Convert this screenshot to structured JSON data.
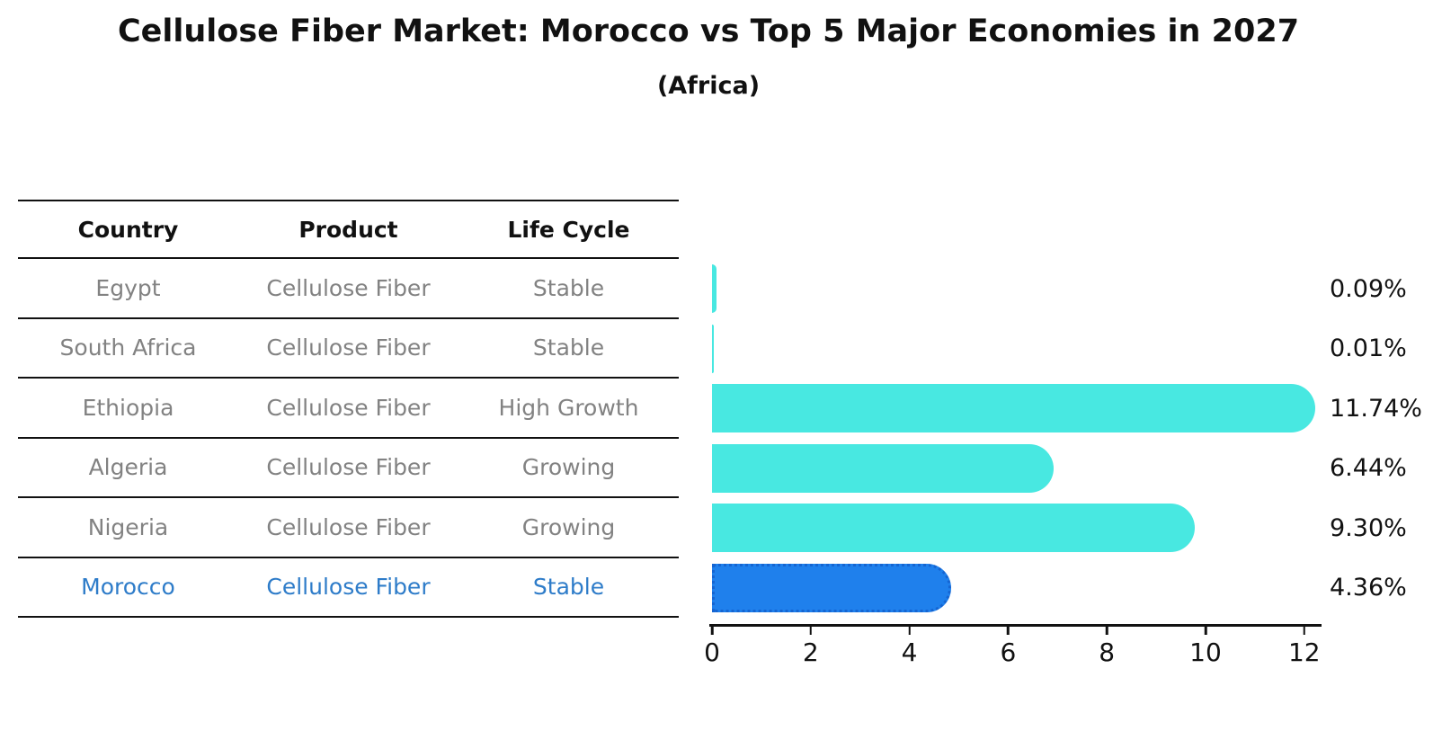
{
  "title": "Cellulose Fiber Market: Morocco vs Top 5 Major Economies in 2027",
  "subtitle": "(Africa)",
  "table": {
    "headers": [
      "Country",
      "Product",
      "Life Cycle"
    ],
    "rows": [
      {
        "country": "Egypt",
        "product": "Cellulose Fiber",
        "life_cycle": "Stable",
        "highlighted": false
      },
      {
        "country": "South Africa",
        "product": "Cellulose Fiber",
        "life_cycle": "Stable",
        "highlighted": false
      },
      {
        "country": "Ethiopia",
        "product": "Cellulose Fiber",
        "life_cycle": "High Growth",
        "highlighted": false
      },
      {
        "country": "Algeria",
        "product": "Cellulose Fiber",
        "life_cycle": "Growing",
        "highlighted": false
      },
      {
        "country": "Nigeria",
        "product": "Cellulose Fiber",
        "life_cycle": "Growing",
        "highlighted": false
      },
      {
        "country": "Morocco",
        "product": "Cellulose Fiber",
        "life_cycle": "Stable",
        "highlighted": true
      }
    ]
  },
  "chart_data": {
    "type": "bar",
    "orientation": "horizontal",
    "categories": [
      "Egypt",
      "South Africa",
      "Ethiopia",
      "Algeria",
      "Nigeria",
      "Morocco"
    ],
    "values": [
      0.09,
      0.01,
      11.74,
      6.44,
      9.3,
      4.36
    ],
    "value_labels": [
      "0.09%",
      "0.01%",
      "11.74%",
      "6.44%",
      "9.30%",
      "4.36%"
    ],
    "xlim": [
      0,
      12.3
    ],
    "x_ticks": [
      0,
      2,
      4,
      6,
      8,
      10,
      12
    ],
    "grid": false,
    "legend": "none",
    "bar_color": "#48e8e1",
    "highlight_index": 5,
    "highlight_bar_color": "#1f80ec",
    "highlight_bar_border_color": "#1565d2"
  },
  "colors": {
    "title_text": "#111111",
    "table_header_text": "#111111",
    "table_row_text": "#828282",
    "highlight_row_text": "#2e7cc9",
    "value_label_text": "#111111",
    "line": "#111111"
  }
}
